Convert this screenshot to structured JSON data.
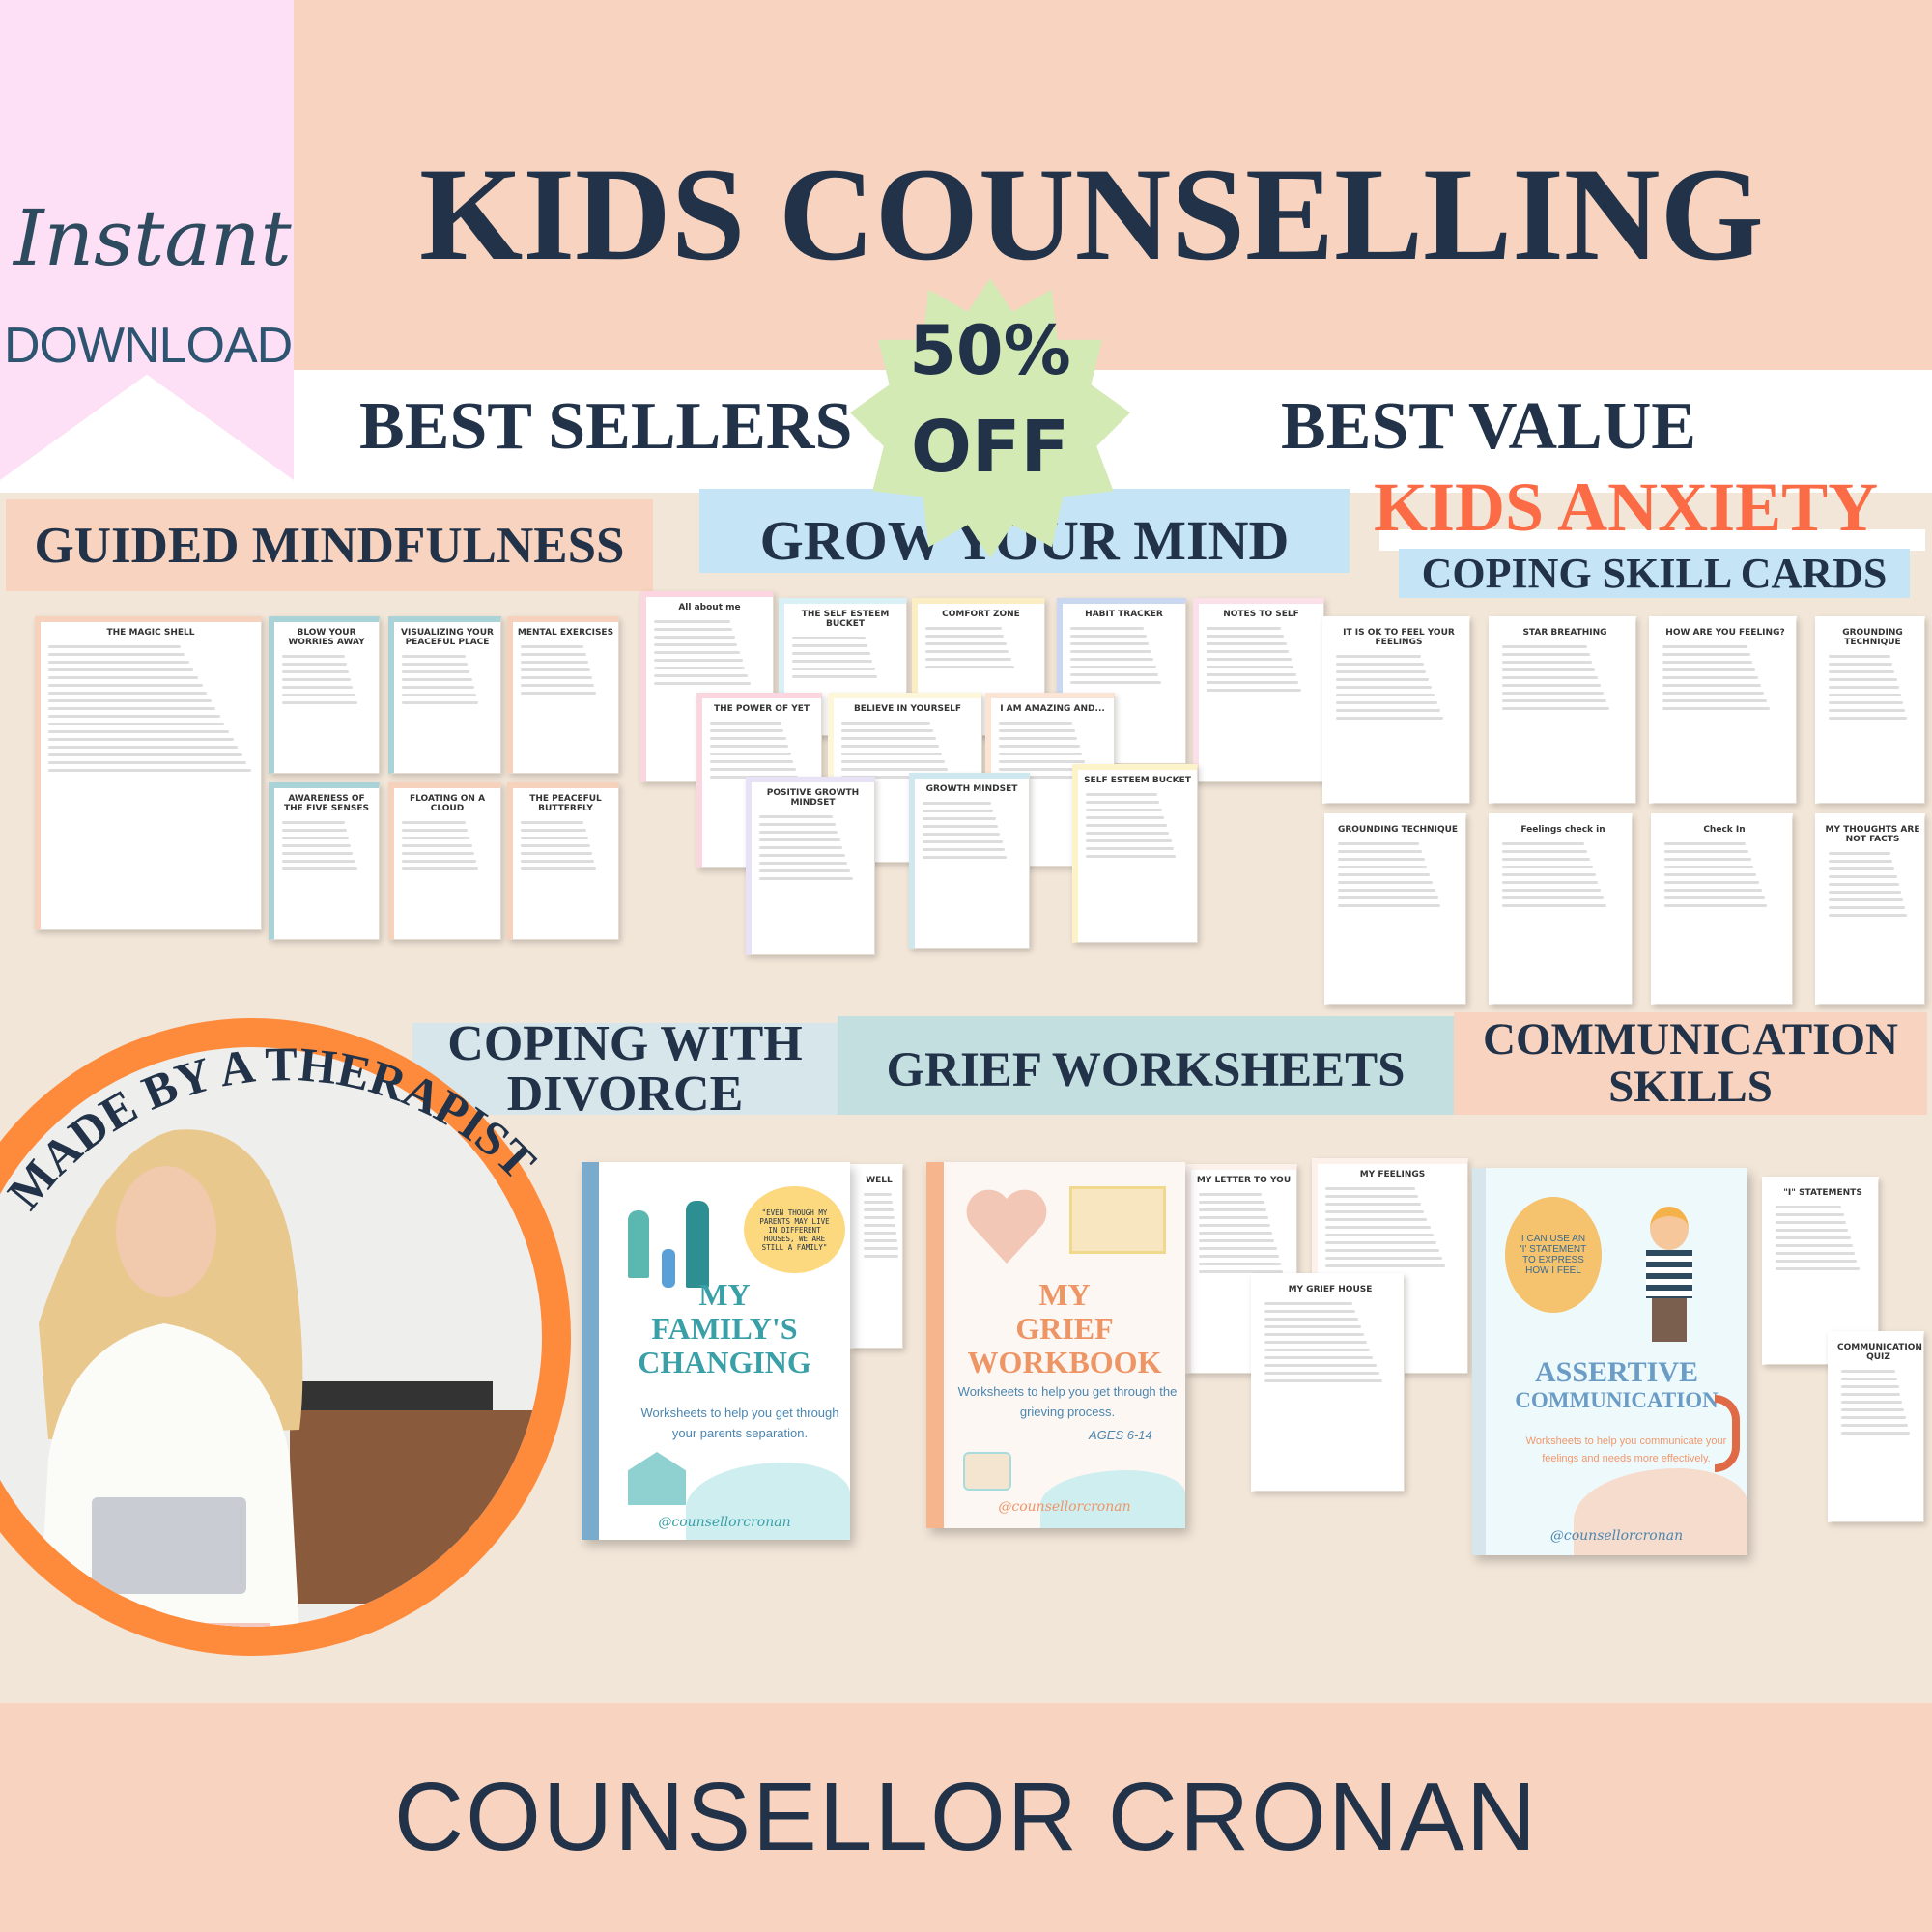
{
  "header": {
    "title": "KIDS COUNSELLING",
    "instant": "Instant",
    "download": "DOWNLOAD",
    "best_sellers": "BEST SELLERS",
    "best_value": "BEST VALUE",
    "badge_line1": "50%",
    "badge_line2": "OFF"
  },
  "sections": {
    "guided": "GUIDED MINDFULNESS",
    "grow": "GROW YOUR MIND",
    "anxiety": "KIDS ANXIETY",
    "coping_cards": "COPING SKILL CARDS",
    "divorce_line1": "COPING WITH",
    "divorce_line2": "DIVORCE",
    "grief": "GRIEF WORKSHEETS",
    "comm_line1": "COMMUNICATION",
    "comm_line2": "SKILLS"
  },
  "therapist": {
    "curved_text": "MADE BY A THERAPIST"
  },
  "thumbnails": [
    {
      "title": "THE MAGIC SHELL",
      "bg": "#f6d1bc"
    },
    {
      "title": "BLOW YOUR WORRIES AWAY",
      "bg": "#a9d3d6"
    },
    {
      "title": "VISUALIZING YOUR PEACEFUL PLACE",
      "bg": "#a9d3d6"
    },
    {
      "title": "MENTAL EXERCISES",
      "bg": "#f6d1bc"
    },
    {
      "title": "AWARENESS OF THE FIVE SENSES",
      "bg": "#a9d3d6"
    },
    {
      "title": "FLOATING ON A CLOUD",
      "bg": "#f6d1bc"
    },
    {
      "title": "THE PEACEFUL BUTTERFLY",
      "bg": "#f6d1bc"
    },
    {
      "title": "All about me",
      "bg": "#fbd5e0"
    },
    {
      "title": "THE SELF ESTEEM BUCKET",
      "bg": "#d8f0f6"
    },
    {
      "title": "COMFORT ZONE",
      "bg": "#fbeec5"
    },
    {
      "title": "HABIT TRACKER",
      "bg": "#c9d8f0"
    },
    {
      "title": "NOTES TO SELF",
      "bg": "#fbe0ea"
    },
    {
      "title": "THE POWER OF YET",
      "bg": "#fbd5e0"
    },
    {
      "title": "BELIEVE IN YOURSELF",
      "bg": "#fdf6d8"
    },
    {
      "title": "I AM AMAZING AND...",
      "bg": "#fce4d4"
    },
    {
      "title": "POSITIVE GROWTH MINDSET",
      "bg": "#e8e2f6"
    },
    {
      "title": "GROWTH MINDSET",
      "bg": "#cfe8f0"
    },
    {
      "title": "SELF ESTEEM BUCKET",
      "bg": "#fdf3c8"
    },
    {
      "title": "IT IS OK TO FEEL YOUR FEELINGS",
      "bg": "#ffffff"
    },
    {
      "title": "STAR BREATHING",
      "bg": "#ffffff"
    },
    {
      "title": "HOW ARE YOU FEELING?",
      "bg": "#ffffff"
    },
    {
      "title": "GROUNDING TECHNIQUE",
      "bg": "#ffffff"
    },
    {
      "title": "GROUNDING TECHNIQUE",
      "bg": "#ffffff"
    },
    {
      "title": "Feelings check in",
      "bg": "#ffffff"
    },
    {
      "title": "Check In",
      "bg": "#ffffff"
    },
    {
      "title": "MY THOUGHTS ARE NOT FACTS",
      "bg": "#ffffff"
    },
    {
      "title": "WELL",
      "bg": "#ffffff"
    },
    {
      "title": "MY LETTER TO YOU",
      "bg": "#fdf1ec"
    },
    {
      "title": "MY FEELINGS",
      "bg": "#fdf1ec"
    },
    {
      "title": "MY GRIEF HOUSE",
      "bg": "#ffffff"
    },
    {
      "title": "\"I\" STATEMENTS",
      "bg": "#ffffff"
    },
    {
      "title": "COMMUNICATION QUIZ",
      "bg": "#ffffff"
    }
  ],
  "covers": {
    "family": {
      "quote": "\"EVEN THOUGH MY PARENTS MAY LIVE IN DIFFERENT HOUSES, WE ARE STILL A FAMILY\"",
      "title1": "MY",
      "title2": "FAMILY'S",
      "title3": "CHANGING",
      "sub": "Worksheets to help you get through your parents separation.",
      "handle": "@counsellorcronan"
    },
    "grief": {
      "title1": "MY",
      "title2": "GRIEF",
      "title3": "WORKBOOK",
      "sub": "Worksheets to help you get through the grieving process.",
      "ages": "AGES 6-14",
      "handle": "@counsellorcronan"
    },
    "assertive": {
      "bubble": "I CAN USE AN 'I' STATEMENT TO EXPRESS HOW I FEEL",
      "title1": "ASSERTIVE",
      "title2": "COMMUNICATION",
      "sub": "Worksheets to help you communicate your feelings and needs more effectively.",
      "handle": "@counsellorcronan"
    }
  },
  "footer": {
    "brand": "COUNSELLOR CRONAN"
  },
  "colors": {
    "navy": "#223349",
    "peach": "#f7d3c0",
    "pink": "#fde0f5",
    "beige": "#f2e6d8",
    "orange": "#fe8a3c",
    "anxiety_orange": "#fb6b45",
    "green_badge": "#d4eab5",
    "blue_box": "#c5e5f7",
    "teal_box": "#c3dfe0"
  }
}
